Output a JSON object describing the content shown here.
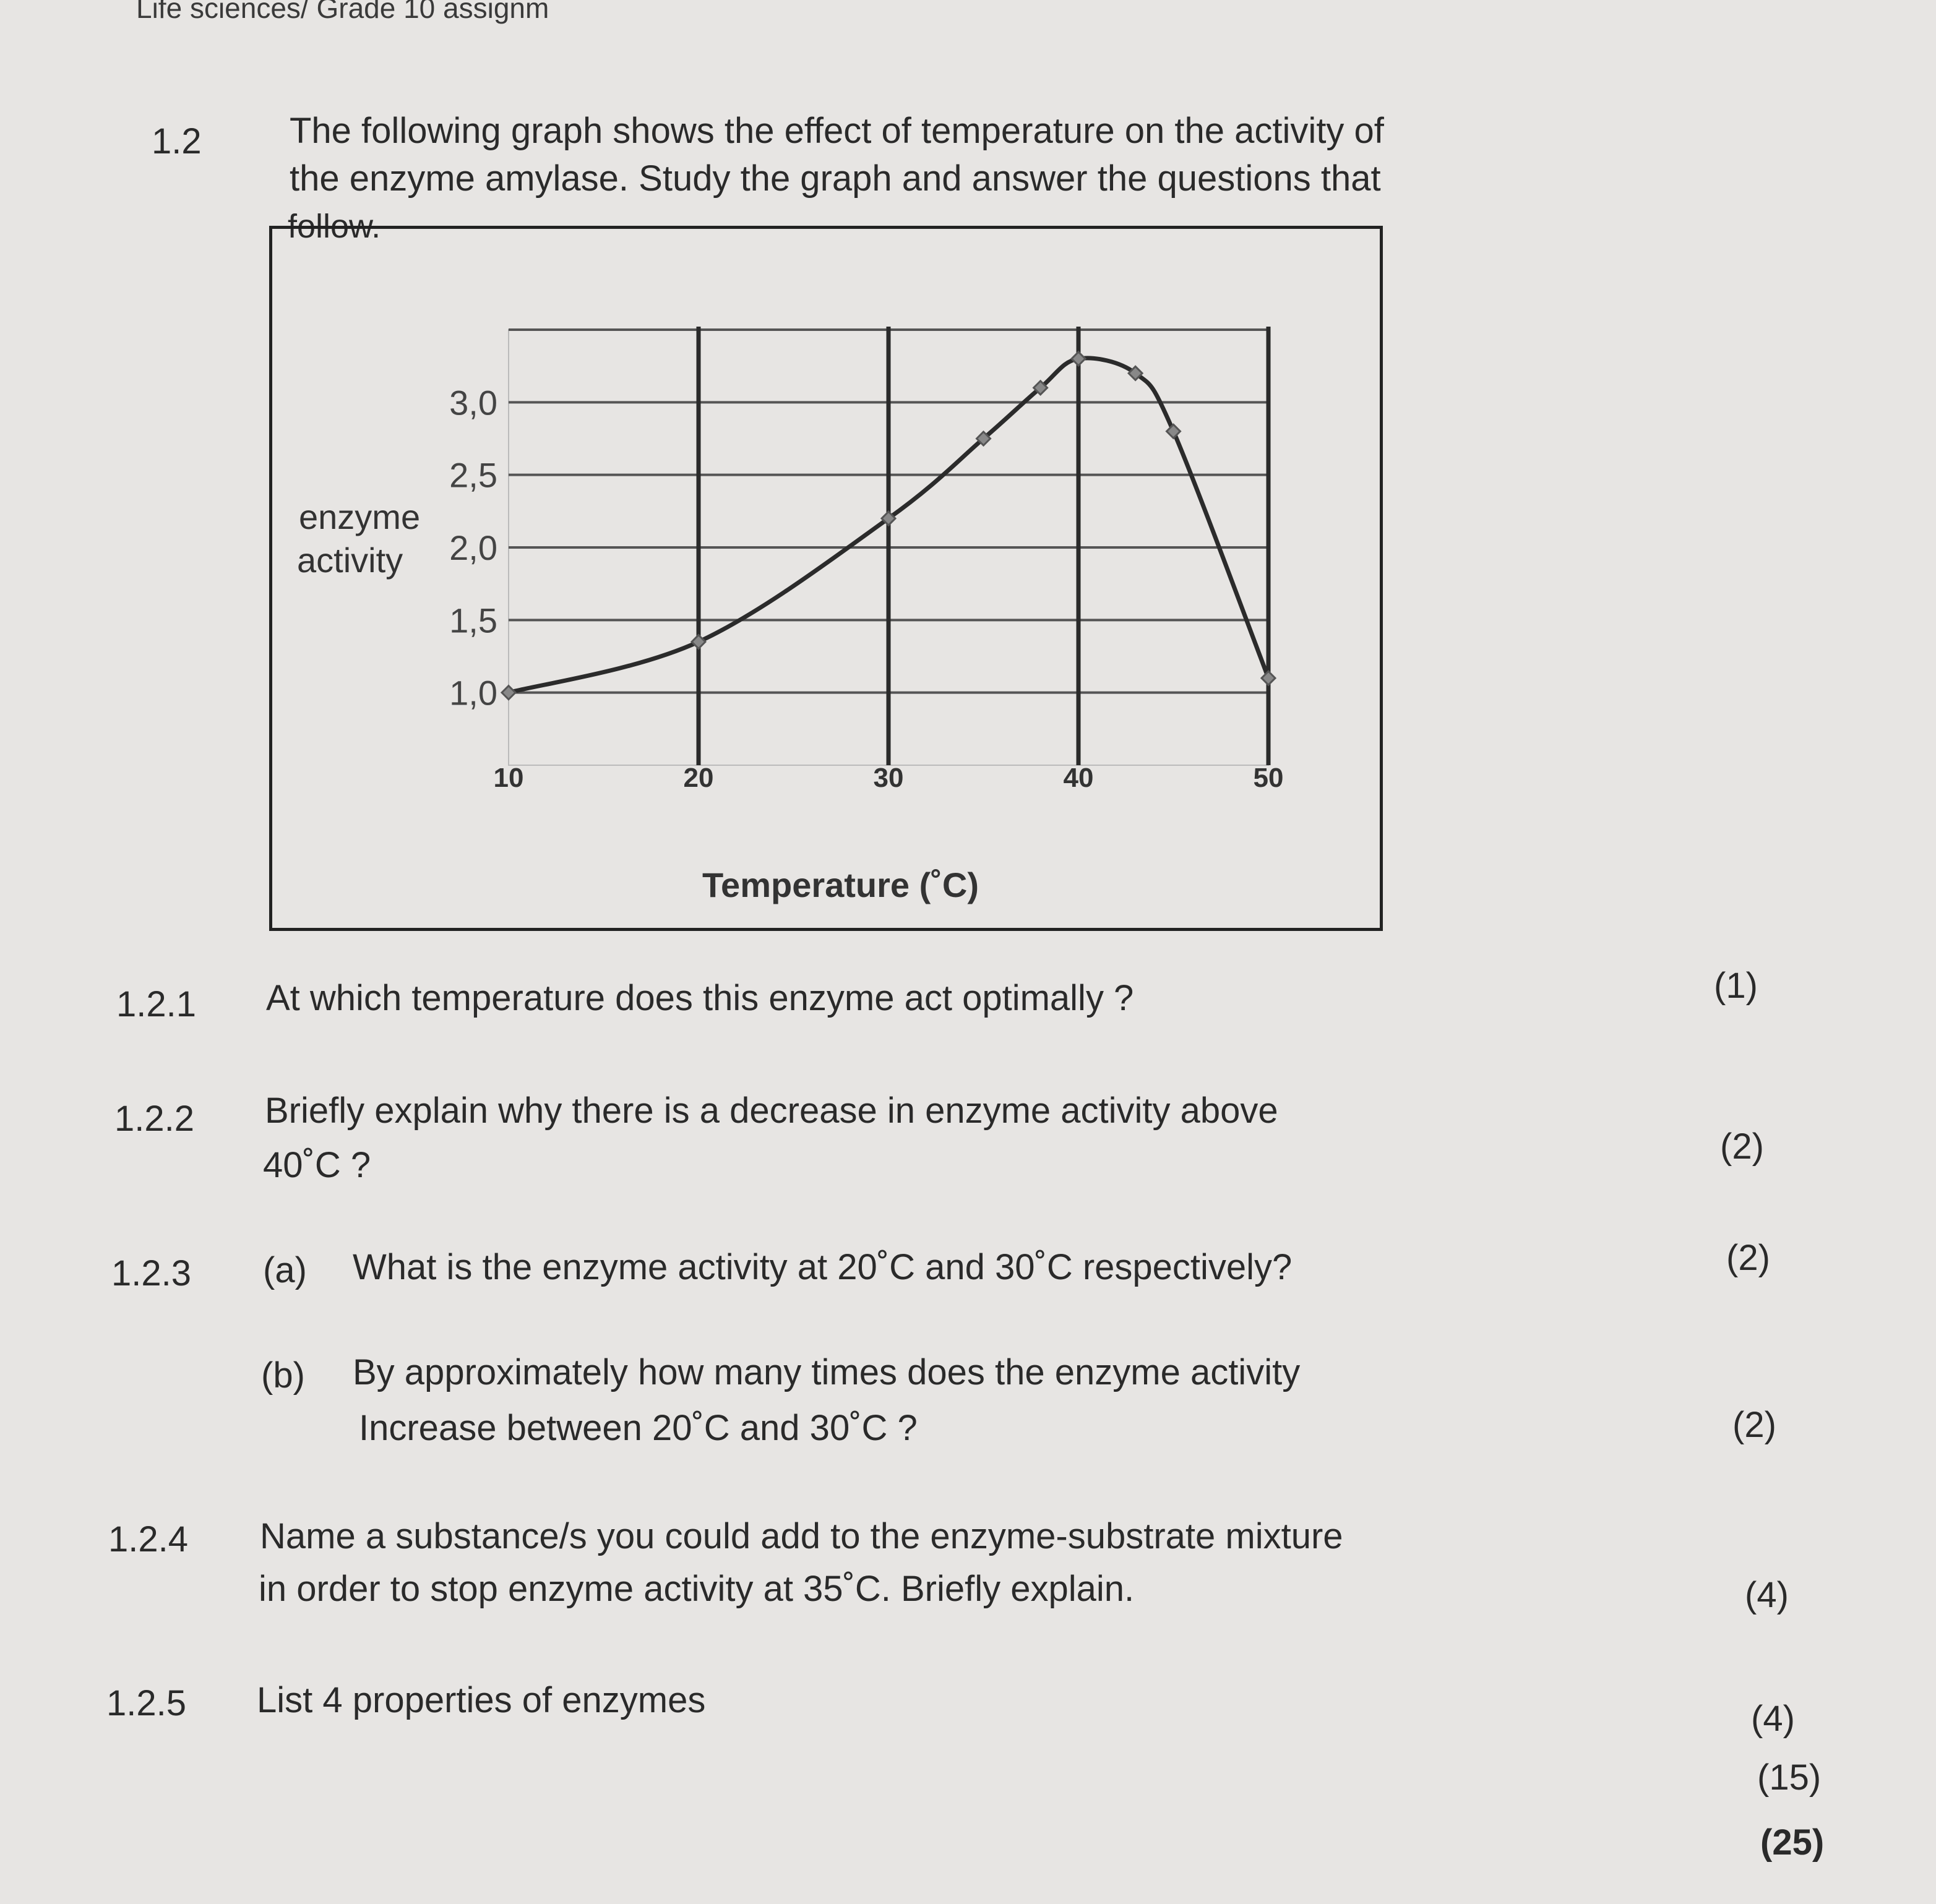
{
  "header": "Life sciences/ Grade 10 assignm",
  "question": {
    "number": "1.2",
    "intro_lines": [
      "The following graph shows the effect of temperature on the activity of",
      "the enzyme amylase. Study the graph and answer the questions that",
      "follow."
    ]
  },
  "chart_data": {
    "type": "line",
    "title": "",
    "xlabel": "Temperature (˚C)",
    "ylabel": "enzyme activity",
    "ylabel_lines": [
      "enzyme",
      "activity"
    ],
    "x_ticks": [
      "10",
      "20",
      "30",
      "40",
      "50"
    ],
    "y_ticks": [
      "1,0",
      "1,5",
      "2,0",
      "2,5",
      "3,0"
    ],
    "y_gridlines": [
      1.0,
      1.5,
      2.0,
      2.5,
      3.0,
      3.5
    ],
    "x_gridlines": [
      20,
      30,
      40,
      50
    ],
    "xlim": [
      10,
      50
    ],
    "ylim": [
      0.5,
      3.5
    ],
    "grid": true,
    "series": [
      {
        "x": [
          10,
          20,
          30,
          35,
          38,
          40,
          43,
          45,
          50
        ],
        "y": [
          1.0,
          1.35,
          2.2,
          2.75,
          3.1,
          3.3,
          3.2,
          2.8,
          1.1
        ]
      }
    ],
    "color": "#2b2b2b"
  },
  "questions": [
    {
      "number": "1.2.1",
      "lines": [
        "At which temperature does this enzyme act optimally ?"
      ],
      "marks": "(1)"
    },
    {
      "number": "1.2.2",
      "lines": [
        "Briefly explain why there is a decrease in enzyme activity above",
        "40˚C ?"
      ],
      "marks": "(2)"
    },
    {
      "number": "1.2.3",
      "part": "(a)",
      "lines": [
        "What is the enzyme activity at 20˚C and 30˚C respectively?"
      ],
      "marks": "(2)"
    },
    {
      "number": "",
      "part": "(b)",
      "lines": [
        "By approximately how many times does the enzyme activity",
        "Increase between 20˚C and 30˚C ?"
      ],
      "marks": "(2)"
    },
    {
      "number": "1.2.4",
      "lines": [
        "Name a substance/s you could add to the enzyme-substrate mixture",
        "in order to stop enzyme activity at 35˚C. Briefly explain."
      ],
      "marks": "(4)"
    },
    {
      "number": "1.2.5",
      "lines": [
        "List 4 properties of enzymes"
      ],
      "marks": "(4)"
    }
  ],
  "subtotal": "(15)",
  "total": "(25)"
}
